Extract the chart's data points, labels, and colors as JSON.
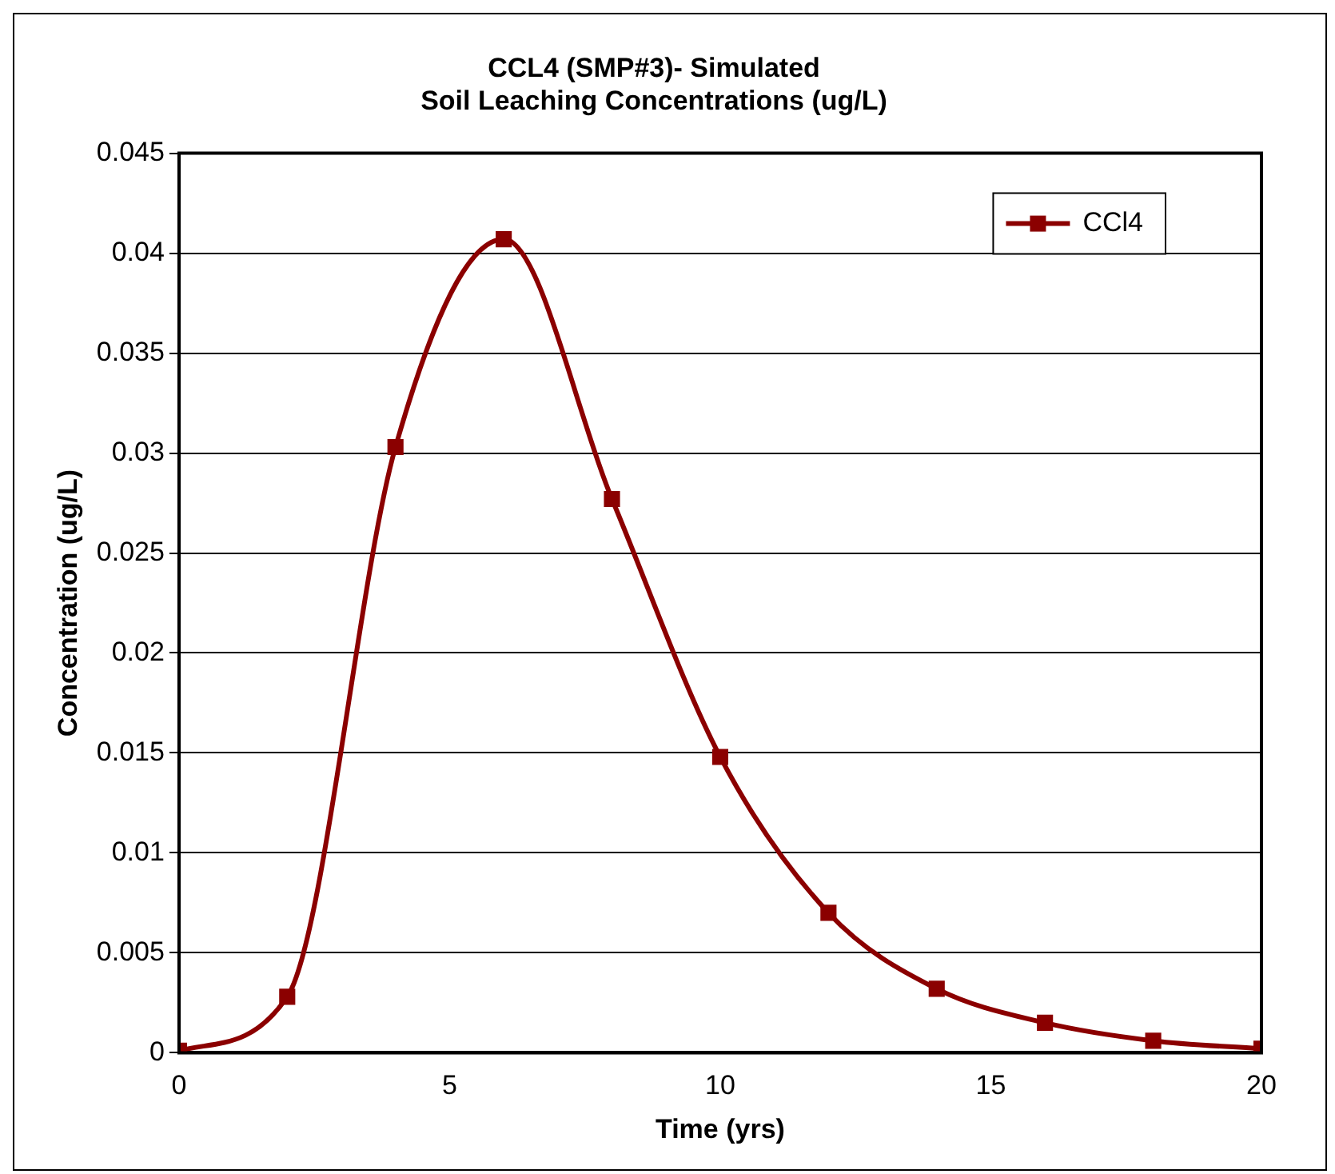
{
  "chart_data": {
    "type": "line",
    "title": [
      "CCL4 (SMP#3)- Simulated",
      "Soil Leaching Concentrations (ug/L)"
    ],
    "xlabel": "Time (yrs)",
    "ylabel": "Concentration (ug/L)",
    "x": [
      0,
      2,
      4,
      6,
      8,
      10,
      12,
      14,
      16,
      18,
      20
    ],
    "series": [
      {
        "name": "CCl4",
        "color": "#8b0000",
        "values": [
          0.0001,
          0.0028,
          0.0303,
          0.0407,
          0.0277,
          0.0148,
          0.007,
          0.0032,
          0.0015,
          0.0006,
          0.0002
        ]
      }
    ],
    "xlim": [
      0,
      20
    ],
    "xticks": [
      0,
      5,
      10,
      15,
      20
    ],
    "ylim": [
      0,
      0.045
    ],
    "yticks": [
      0,
      0.005,
      0.01,
      0.015,
      0.02,
      0.025,
      0.03,
      0.035,
      0.04,
      0.045
    ],
    "grid": "y",
    "legend": "top right",
    "marker": "square",
    "line_style": "solid"
  }
}
